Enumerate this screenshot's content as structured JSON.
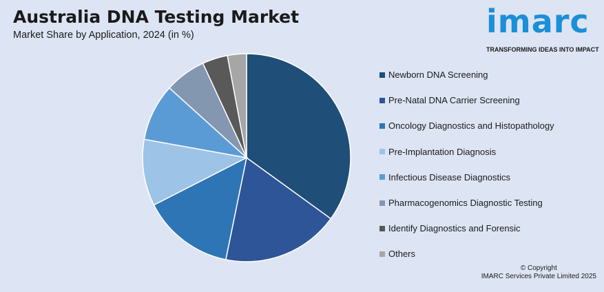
{
  "header": {
    "title": "Australia DNA Testing Market",
    "subtitle": "Market Share by Application, 2024 (in %)"
  },
  "logo": {
    "word": "imarc",
    "tagline": "TRANSFORMING IDEAS INTO IMPACT"
  },
  "chart_data": {
    "type": "pie",
    "title": "Australia DNA Testing Market",
    "subtitle": "Market Share by Application, 2024 (in %)",
    "legend_position": "right",
    "categories": [
      "Newborn DNA Screening",
      "Pre-Natal DNA Carrier Screening",
      "Oncology Diagnostics and Histopathology",
      "Pre-Implantation Diagnosis",
      "Infectious Disease Diagnostics",
      "Pharmacogenomics Diagnostic Testing",
      "Identify Diagnostics and Forensic",
      "Others"
    ],
    "values": [
      35.5,
      18.5,
      14.5,
      10.5,
      9,
      6.5,
      4,
      3
    ],
    "colors": [
      "#1f4e79",
      "#2e5597",
      "#2e75b6",
      "#9dc3e6",
      "#5b9bd5",
      "#8497b0",
      "#595959",
      "#a6a6a6"
    ]
  },
  "footer": {
    "copyright_line1": "© Copyright",
    "copyright_line2": "IMARC Services Private Limited 2025"
  }
}
